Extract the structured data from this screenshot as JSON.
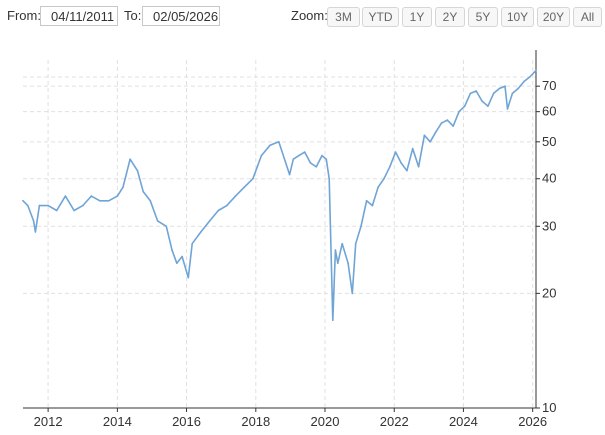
{
  "range": {
    "from_label": "From:",
    "from_value": "04/11/2011",
    "to_label": "To:",
    "to_value": "02/05/2026"
  },
  "zoom": {
    "label": "Zoom:",
    "buttons": [
      "3M",
      "YTD",
      "1Y",
      "2Y",
      "5Y",
      "10Y",
      "20Y",
      "All"
    ]
  },
  "colors": {
    "line": "#6fa4d6",
    "grid": "#e0e0e0",
    "axis": "#333333"
  },
  "chart_data": {
    "type": "line",
    "title": "",
    "xlabel": "",
    "ylabel": "",
    "y_scale": "log",
    "ylim": [
      10,
      82
    ],
    "xlim": [
      "2011-04-11",
      "2026-02-05"
    ],
    "grid": true,
    "y_ticks": [
      10,
      20,
      30,
      40,
      50,
      60,
      70
    ],
    "x_ticks": [
      "2012",
      "2014",
      "2016",
      "2018",
      "2020",
      "2022",
      "2024",
      "2026"
    ],
    "series": [
      {
        "x": [
          "2011-04-11",
          "2011-06-01",
          "2011-08-01",
          "2011-08-20",
          "2011-10-01",
          "2012-01-01",
          "2012-04-01",
          "2012-07-01",
          "2012-10-01",
          "2013-01-01",
          "2013-04-01",
          "2013-07-01",
          "2013-10-01",
          "2014-01-01",
          "2014-03-01",
          "2014-05-15",
          "2014-08-01",
          "2014-10-01",
          "2014-12-15",
          "2015-03-01",
          "2015-06-01",
          "2015-08-01",
          "2015-09-20",
          "2015-11-15",
          "2016-01-20",
          "2016-03-01",
          "2016-06-01",
          "2016-09-01",
          "2016-12-01",
          "2017-03-01",
          "2017-06-01",
          "2017-09-01",
          "2017-12-01",
          "2018-03-01",
          "2018-06-01",
          "2018-09-01",
          "2018-12-24",
          "2019-02-01",
          "2019-04-01",
          "2019-06-01",
          "2019-08-01",
          "2019-10-01",
          "2019-12-01",
          "2020-01-15",
          "2020-02-15",
          "2020-03-23",
          "2020-04-20",
          "2020-05-15",
          "2020-07-01",
          "2020-09-01",
          "2020-10-15",
          "2020-11-20",
          "2021-01-15",
          "2021-03-15",
          "2021-05-15",
          "2021-07-15",
          "2021-09-15",
          "2021-11-15",
          "2022-01-15",
          "2022-03-15",
          "2022-05-15",
          "2022-07-15",
          "2022-09-15",
          "2022-11-15",
          "2023-01-15",
          "2023-03-15",
          "2023-05-15",
          "2023-07-15",
          "2023-09-15",
          "2023-11-15",
          "2024-01-15",
          "2024-03-15",
          "2024-05-15",
          "2024-07-15",
          "2024-09-15",
          "2024-11-15",
          "2025-01-15",
          "2025-03-15",
          "2025-04-10",
          "2025-06-01",
          "2025-08-01",
          "2025-10-01",
          "2025-12-01",
          "2026-01-15",
          "2026-02-05"
        ],
        "values": [
          35,
          34,
          31,
          29,
          34,
          34,
          33,
          36,
          33,
          34,
          36,
          35,
          35,
          36,
          38,
          45,
          42,
          37,
          35,
          31,
          30,
          26,
          24,
          25,
          22,
          27,
          29,
          31,
          33,
          34,
          36,
          38,
          40,
          46,
          49,
          50,
          41,
          45,
          46,
          47,
          44,
          43,
          46,
          45,
          40,
          17,
          26,
          24,
          27,
          24,
          20,
          27,
          30,
          35,
          34,
          38,
          40,
          43,
          47,
          44,
          42,
          48,
          43,
          52,
          50,
          53,
          56,
          57,
          55,
          60,
          62,
          67,
          68,
          64,
          62,
          67,
          69,
          70,
          61,
          67,
          69,
          72,
          74,
          76,
          77
        ]
      }
    ]
  }
}
